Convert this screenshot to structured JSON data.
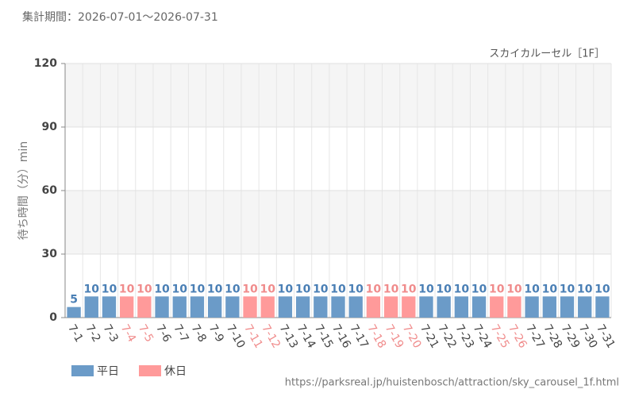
{
  "chart_data": {
    "type": "bar",
    "subtitle": "集計期間：2026-07-01〜2026-07-31",
    "title": "スカイカルーセル［1F］",
    "y_label": "待ち時間（分）min",
    "footer": "https://parksreal.jp/huistenbosch/attraction/sky_carousel_1f.html",
    "categories": [
      "7-1",
      "7-2",
      "7-3",
      "7-4",
      "7-5",
      "7-6",
      "7-7",
      "7-8",
      "7-9",
      "7-10",
      "7-11",
      "7-12",
      "7-13",
      "7-14",
      "7-15",
      "7-16",
      "7-17",
      "7-18",
      "7-19",
      "7-20",
      "7-21",
      "7-22",
      "7-23",
      "7-24",
      "7-25",
      "7-26",
      "7-27",
      "7-28",
      "7-29",
      "7-30",
      "7-31"
    ],
    "series": [
      {
        "name": "平日",
        "color": "#6b9bc8",
        "label_color": "#4a7fb5",
        "values": [
          5,
          10,
          10,
          null,
          null,
          10,
          10,
          10,
          10,
          10,
          null,
          null,
          10,
          10,
          10,
          10,
          10,
          null,
          null,
          null,
          10,
          10,
          10,
          10,
          null,
          null,
          10,
          10,
          10,
          10,
          10
        ]
      },
      {
        "name": "休日",
        "color": "#ff9a9a",
        "label_color": "#f08c8c",
        "values": [
          null,
          null,
          null,
          10,
          10,
          null,
          null,
          null,
          null,
          null,
          10,
          10,
          null,
          null,
          null,
          null,
          null,
          10,
          10,
          10,
          null,
          null,
          null,
          null,
          10,
          10,
          null,
          null,
          null,
          null,
          null
        ]
      }
    ],
    "ylim": [
      0,
      120
    ],
    "yticks": [
      0,
      30,
      60,
      90,
      120
    ],
    "grid": true
  }
}
